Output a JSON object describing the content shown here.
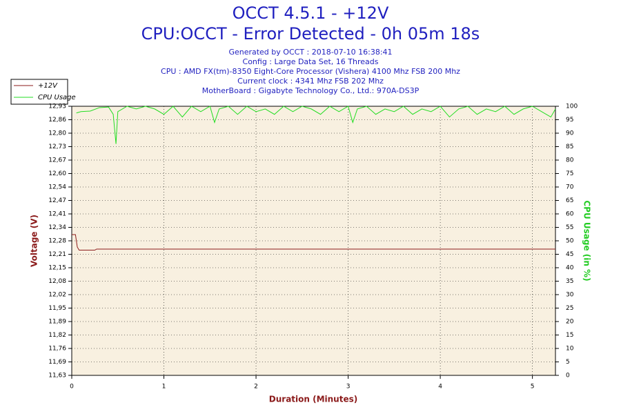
{
  "chart_data": {
    "type": "line",
    "title": "OCCT 4.5.1 - +12V",
    "subtitle": "CPU:OCCT - Error Detected - 0h 05m 18s",
    "info": [
      "Generated by OCCT : 2018-07-10 16:38:41",
      "Config : Large Data Set, 16 Threads",
      "CPU : AMD FX(tm)-8350 Eight-Core Processor (Vishera) 4100 Mhz FSB 200 Mhz",
      "Current clock : 4341 Mhz FSB 202 Mhz",
      "MotherBoard : Gigabyte Technology Co., Ltd.: 970A-DS3P"
    ],
    "xlabel": "Duration (Minutes)",
    "ylabel": "Voltage (V)",
    "y2label": "CPU Usage (in %)",
    "xlim": [
      0,
      5.25
    ],
    "xticks": [
      0,
      1,
      2,
      3,
      4,
      5
    ],
    "ylim": [
      11.63,
      12.93
    ],
    "yticks": [
      {
        "value": 11.63,
        "label": "11,63"
      },
      {
        "value": 11.695,
        "label": "11,69"
      },
      {
        "value": 11.76,
        "label": "11,76"
      },
      {
        "value": 11.825,
        "label": "11,82"
      },
      {
        "value": 11.89,
        "label": "11,89"
      },
      {
        "value": 11.955,
        "label": "11,95"
      },
      {
        "value": 12.02,
        "label": "12,02"
      },
      {
        "value": 12.085,
        "label": "12,08"
      },
      {
        "value": 12.15,
        "label": "12,15"
      },
      {
        "value": 12.215,
        "label": "12,21"
      },
      {
        "value": 12.28,
        "label": "12,28"
      },
      {
        "value": 12.345,
        "label": "12,34"
      },
      {
        "value": 12.41,
        "label": "12,41"
      },
      {
        "value": 12.475,
        "label": "12,47"
      },
      {
        "value": 12.54,
        "label": "12,54"
      },
      {
        "value": 12.605,
        "label": "12,60"
      },
      {
        "value": 12.67,
        "label": "12,67"
      },
      {
        "value": 12.735,
        "label": "12,73"
      },
      {
        "value": 12.8,
        "label": "12,80"
      },
      {
        "value": 12.865,
        "label": "12,86"
      },
      {
        "value": 12.93,
        "label": "12,93"
      }
    ],
    "y2lim": [
      0,
      100
    ],
    "y2ticks": [
      0,
      5,
      10,
      15,
      20,
      25,
      30,
      35,
      40,
      45,
      50,
      55,
      60,
      65,
      70,
      75,
      80,
      85,
      90,
      95,
      100
    ],
    "grid": true,
    "series": [
      {
        "name": "+12V",
        "color": "#8b1a1a",
        "x": [
          0,
          0.04,
          0.06,
          0.08,
          0.25,
          0.27,
          5.25
        ],
        "values": [
          12.31,
          12.31,
          12.25,
          12.235,
          12.235,
          12.24,
          12.24
        ]
      },
      {
        "name": "CPU Usage",
        "color": "#22dd22",
        "axis": "y2",
        "x": [
          0.05,
          0.1,
          0.2,
          0.3,
          0.4,
          0.45,
          0.48,
          0.5,
          0.6,
          0.7,
          0.8,
          0.9,
          1.0,
          1.1,
          1.2,
          1.3,
          1.4,
          1.5,
          1.55,
          1.6,
          1.7,
          1.8,
          1.9,
          2.0,
          2.1,
          2.2,
          2.3,
          2.4,
          2.5,
          2.6,
          2.7,
          2.8,
          2.9,
          3.0,
          3.05,
          3.1,
          3.2,
          3.3,
          3.4,
          3.5,
          3.6,
          3.7,
          3.8,
          3.9,
          4.0,
          4.1,
          4.2,
          4.3,
          4.4,
          4.5,
          4.6,
          4.7,
          4.8,
          4.9,
          5.0,
          5.1,
          5.2,
          5.25
        ],
        "values": [
          97.5,
          98,
          98.2,
          99.5,
          99.7,
          97,
          86,
          98,
          100,
          99,
          100,
          99,
          97,
          100,
          96,
          100,
          98,
          100,
          94,
          99,
          100,
          97,
          100,
          98,
          99,
          97,
          100,
          98,
          100,
          99,
          97,
          100,
          98,
          100,
          94,
          99,
          100,
          97,
          99,
          98,
          100,
          97,
          99,
          98,
          100,
          96,
          99,
          100,
          97,
          99,
          98,
          100,
          97,
          99,
          100,
          98,
          96,
          99
        ]
      }
    ]
  }
}
